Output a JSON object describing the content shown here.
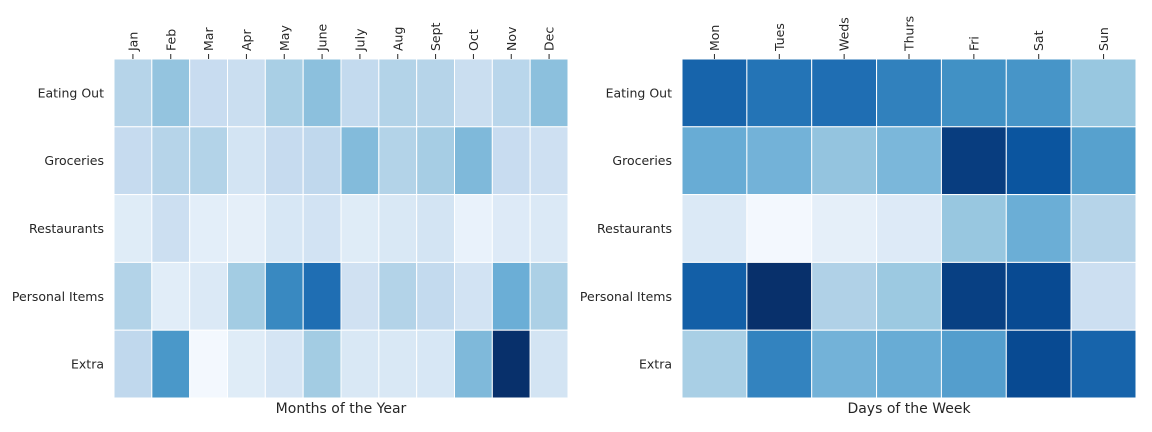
{
  "chart_data": [
    {
      "type": "heatmap",
      "xlabel": "Months of the Year",
      "ylabel": "",
      "x_categories": [
        "Jan",
        "Feb",
        "Mar",
        "Apr",
        "May",
        "June",
        "July",
        "Aug",
        "Sept",
        "Oct",
        "Nov",
        "Dec"
      ],
      "y_categories": [
        "Eating Out",
        "Groceries",
        "Restaurants",
        "Personal Items",
        "Extra"
      ],
      "x_tick_position": "top",
      "colormap": "Blues",
      "colorbar": false,
      "grid": false,
      "values": [
        [
          0.3,
          0.4,
          0.24,
          0.23,
          0.34,
          0.42,
          0.26,
          0.31,
          0.3,
          0.23,
          0.29,
          0.42
        ],
        [
          0.25,
          0.3,
          0.31,
          0.18,
          0.25,
          0.27,
          0.44,
          0.31,
          0.35,
          0.45,
          0.24,
          0.21
        ],
        [
          0.12,
          0.22,
          0.1,
          0.09,
          0.16,
          0.19,
          0.12,
          0.15,
          0.18,
          0.07,
          0.13,
          0.14
        ],
        [
          0.31,
          0.11,
          0.14,
          0.36,
          0.66,
          0.76,
          0.2,
          0.31,
          0.26,
          0.19,
          0.5,
          0.33
        ],
        [
          0.27,
          0.6,
          0.02,
          0.12,
          0.17,
          0.36,
          0.15,
          0.15,
          0.16,
          0.45,
          1.0,
          0.18
        ]
      ]
    },
    {
      "type": "heatmap",
      "xlabel": "Days of the Week",
      "ylabel": "",
      "x_categories": [
        "Mon",
        "Tues",
        "Weds",
        "Thurs",
        "Fri",
        "Sat",
        "Sun"
      ],
      "y_categories": [
        "Eating Out",
        "Groceries",
        "Restaurants",
        "Personal Items",
        "Extra"
      ],
      "x_tick_position": "top",
      "colormap": "Blues",
      "colorbar": false,
      "grid": false,
      "values": [
        [
          0.8,
          0.74,
          0.76,
          0.69,
          0.63,
          0.61,
          0.39
        ],
        [
          0.51,
          0.48,
          0.4,
          0.46,
          0.95,
          0.86,
          0.56
        ],
        [
          0.14,
          0.02,
          0.09,
          0.13,
          0.39,
          0.5,
          0.3
        ],
        [
          0.82,
          1.0,
          0.32,
          0.38,
          0.94,
          0.9,
          0.22
        ],
        [
          0.34,
          0.68,
          0.48,
          0.51,
          0.57,
          0.9,
          0.8
        ]
      ]
    }
  ]
}
